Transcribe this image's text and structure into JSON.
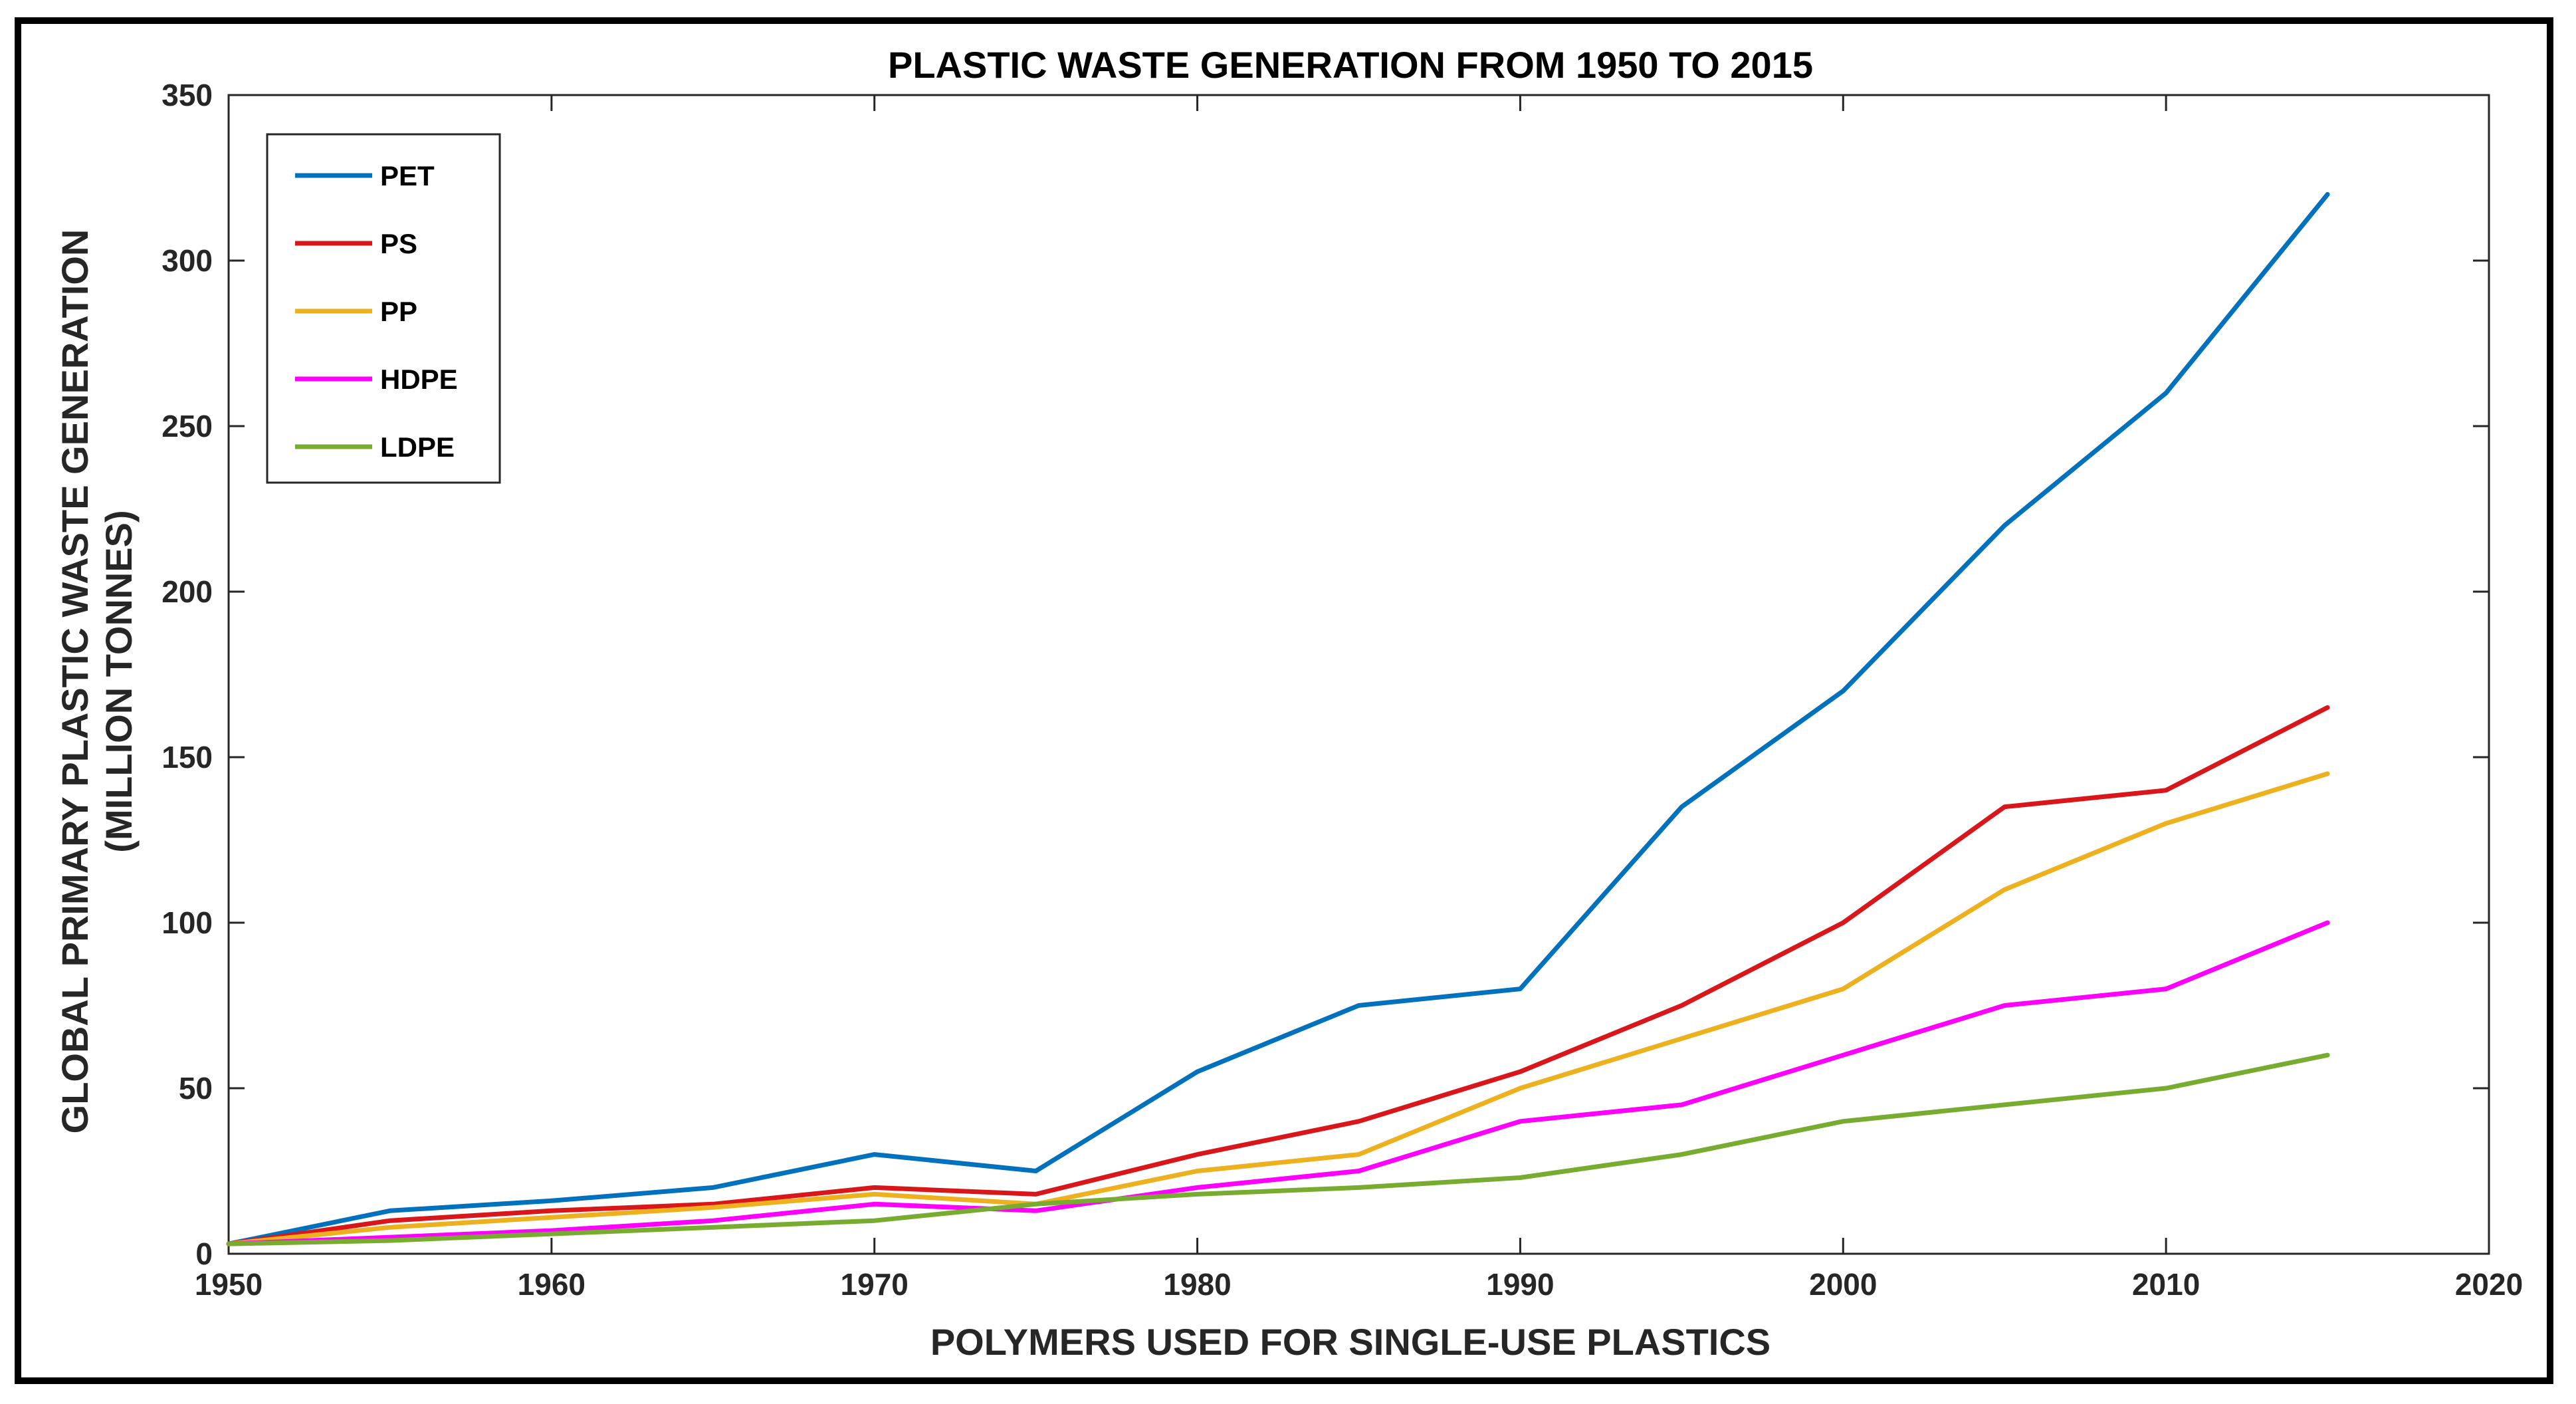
{
  "chart_data": {
    "type": "line",
    "title": "PLASTIC WASTE GENERATION FROM 1950 TO 2015",
    "xlabel": "POLYMERS USED FOR SINGLE-USE PLASTICS",
    "ylabel_line1": "GLOBAL PRIMARY PLASTIC WASTE GENERATION",
    "ylabel_line2": "(MILLION TONNES)",
    "xlim": [
      1950,
      2020
    ],
    "ylim": [
      0,
      350
    ],
    "xticks": [
      1950,
      1960,
      1970,
      1980,
      1990,
      2000,
      2010,
      2020
    ],
    "yticks": [
      0,
      50,
      100,
      150,
      200,
      250,
      300,
      350
    ],
    "grid": false,
    "legend_position": "top-left",
    "x": [
      1950,
      1955,
      1960,
      1965,
      1970,
      1975,
      1980,
      1985,
      1990,
      1995,
      2000,
      2005,
      2010,
      2015
    ],
    "series": [
      {
        "name": "PET",
        "color": "#0072BD",
        "values": [
          3,
          13,
          16,
          20,
          30,
          25,
          55,
          75,
          80,
          135,
          170,
          220,
          260,
          320
        ]
      },
      {
        "name": "PS",
        "color": "#D9171B",
        "values": [
          3,
          10,
          13,
          15,
          20,
          18,
          30,
          40,
          55,
          75,
          100,
          135,
          140,
          165
        ]
      },
      {
        "name": "PP",
        "color": "#EDB120",
        "values": [
          3,
          8,
          11,
          14,
          18,
          15,
          25,
          30,
          50,
          65,
          80,
          110,
          130,
          145
        ]
      },
      {
        "name": "HDPE",
        "color": "#FF00FF",
        "values": [
          3,
          5,
          7,
          10,
          15,
          13,
          20,
          25,
          40,
          45,
          60,
          75,
          80,
          100
        ]
      },
      {
        "name": "LDPE",
        "color": "#77AC30",
        "values": [
          3,
          4,
          6,
          8,
          10,
          15,
          18,
          20,
          23,
          30,
          40,
          45,
          50,
          60
        ]
      }
    ]
  }
}
